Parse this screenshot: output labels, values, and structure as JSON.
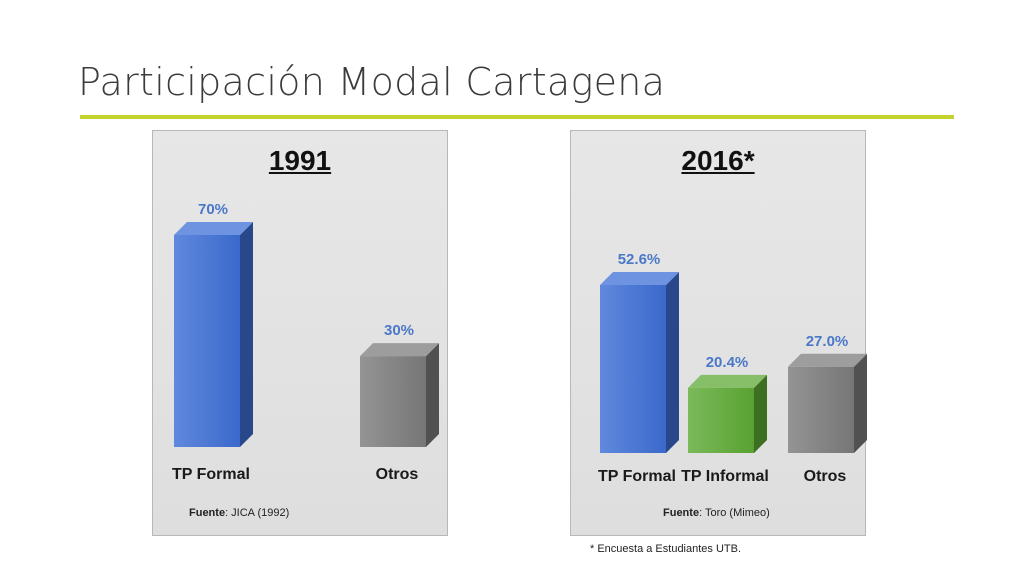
{
  "page": {
    "title": "Participación Modal Cartagena"
  },
  "chart_data": [
    {
      "type": "bar",
      "title": "1991",
      "categories": [
        "TP Formal",
        "Otros"
      ],
      "values": [
        70,
        30
      ],
      "value_labels": [
        "70%",
        "30%"
      ],
      "colors": [
        "#3d6fd6",
        "#7c7c7c"
      ],
      "ylim": [
        0,
        70
      ],
      "source_label": "Fuente",
      "source_text": ": JICA (1992)"
    },
    {
      "type": "bar",
      "title": "2016*",
      "categories": [
        "TP Formal",
        "TP Informal",
        "Otros"
      ],
      "values": [
        52.6,
        20.4,
        27.0
      ],
      "value_labels": [
        "52.6%",
        "20.4%",
        "27.0%"
      ],
      "colors": [
        "#3d6fd6",
        "#5eaa35",
        "#7c7c7c"
      ],
      "ylim": [
        0,
        52.6
      ],
      "source_label": "Fuente",
      "source_text": ": Toro (Mimeo)"
    }
  ],
  "footnote": "* Encuesta a Estudiantes UTB.",
  "styles": {
    "value_label_color": "#4a78c8",
    "category_label_color": "#1a1a1a",
    "accent_rule": "#c4d22e"
  }
}
